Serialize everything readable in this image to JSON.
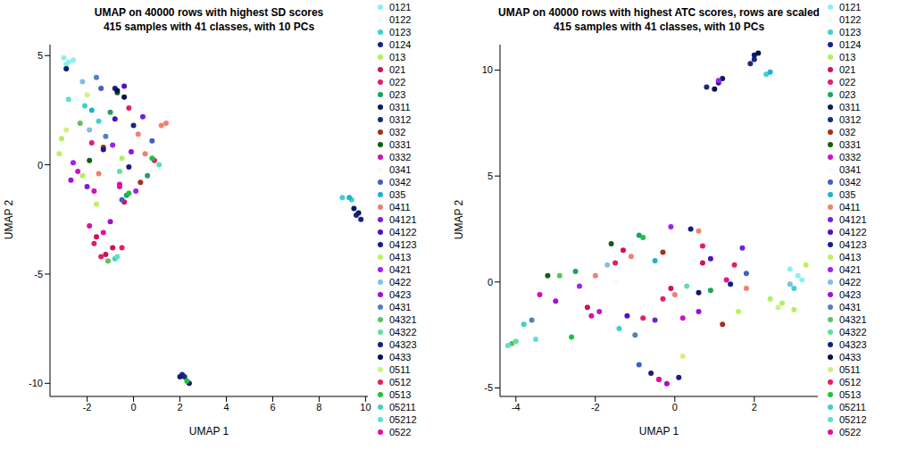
{
  "chart_data": [
    {
      "type": "scatter",
      "title": "UMAP on 40000 rows with highest SD scores",
      "subtitle": "415 samples with 41 classes, with 10 PCs",
      "x_label": "UMAP 1",
      "y_label": "UMAP 2",
      "xlim": [
        -3.6,
        10.1
      ],
      "ylim": [
        -10.6,
        5.5
      ],
      "xticks": [
        -2,
        0,
        2,
        4,
        6,
        8,
        10
      ],
      "yticks": [
        -10,
        -5,
        0,
        5
      ],
      "marker": "circle",
      "series": [
        {
          "name": "0121",
          "color": "#8cf0f0",
          "x": [
            -3.0,
            -2.8,
            -2.6,
            -2.9
          ],
          "y": [
            4.9,
            4.7,
            4.8,
            4.6
          ]
        },
        {
          "name": "0122",
          "color": "#f4fbfb",
          "x": [
            -2.5,
            -1.0
          ],
          "y": [
            3.0,
            1.5
          ]
        },
        {
          "name": "0123",
          "color": "#40d0d0",
          "x": [
            9.0,
            9.4,
            -1.5
          ],
          "y": [
            -1.5,
            -1.6,
            2.0
          ]
        },
        {
          "name": "0124",
          "color": "#1a237e",
          "x": [
            9.6,
            9.8,
            -0.8
          ],
          "y": [
            -2.3,
            -2.5,
            3.5
          ]
        },
        {
          "name": "013",
          "color": "#b0f060",
          "x": [
            -3.1,
            -2.2,
            -0.5
          ],
          "y": [
            1.2,
            -0.5,
            0.3
          ]
        },
        {
          "name": "021",
          "color": "#d0105a",
          "x": [
            -1.6,
            -1.2,
            -0.9,
            -0.4
          ],
          "y": [
            -3.3,
            -4.1,
            -3.8,
            -1.7
          ]
        },
        {
          "name": "022",
          "color": "#e0206a",
          "x": [
            -1.8,
            -0.2,
            0.9
          ],
          "y": [
            1.0,
            2.6,
            0.2
          ]
        },
        {
          "name": "023",
          "color": "#20a060",
          "x": [
            -0.3,
            0.6,
            -1.0
          ],
          "y": [
            -1.4,
            -0.5,
            2.4
          ]
        },
        {
          "name": "0311",
          "color": "#0a1a6a",
          "x": [
            9.5,
            -2.9,
            9.7
          ],
          "y": [
            -2.0,
            4.4,
            -2.2
          ]
        },
        {
          "name": "0312",
          "color": "#1a2a7a",
          "x": [
            2.1,
            2.2,
            0.0
          ],
          "y": [
            -9.6,
            -9.7,
            1.8
          ]
        },
        {
          "name": "032",
          "color": "#a03020",
          "x": [
            -1.3,
            0.3
          ],
          "y": [
            0.8,
            -0.8
          ]
        },
        {
          "name": "0331",
          "color": "#106010",
          "x": [
            -0.7,
            -1.9
          ],
          "y": [
            3.3,
            0.2
          ]
        },
        {
          "name": "0332",
          "color": "#d010c0",
          "x": [
            -2.4,
            -1.7,
            -0.6
          ],
          "y": [
            -0.3,
            -1.2,
            -0.9
          ]
        },
        {
          "name": "0341",
          "color": "#f4fbfb",
          "x": [
            -1.1
          ],
          "y": [
            -0.2
          ]
        },
        {
          "name": "0342",
          "color": "#4060c0",
          "x": [
            -1.4,
            -0.5,
            0.8
          ],
          "y": [
            3.5,
            -1.6,
            1.1
          ]
        },
        {
          "name": "035",
          "color": "#20b0d0",
          "x": [
            9.3,
            -1.8
          ],
          "y": [
            -1.5,
            2.5
          ]
        },
        {
          "name": "0411",
          "color": "#f08070",
          "x": [
            1.2,
            1.4,
            0.5,
            -1.5,
            0.2
          ],
          "y": [
            1.8,
            1.9,
            0.5,
            -0.4,
            1.4
          ]
        },
        {
          "name": "04121",
          "color": "#7020e0",
          "x": [
            -2.0,
            0.4
          ],
          "y": [
            -1.0,
            2.2
          ]
        },
        {
          "name": "04122",
          "color": "#5010c0",
          "x": [
            -0.4,
            -0.8
          ],
          "y": [
            3.6,
            2.1
          ]
        },
        {
          "name": "04123",
          "color": "#1a1a8a",
          "x": [
            -0.2,
            -1.3
          ],
          "y": [
            -0.1,
            0.7
          ]
        },
        {
          "name": "0413",
          "color": "#c0f060",
          "x": [
            -3.2,
            -1.6
          ],
          "y": [
            0.5,
            -1.8
          ]
        },
        {
          "name": "0421",
          "color": "#a020f0",
          "x": [
            -2.6,
            -0.9,
            0.1
          ],
          "y": [
            0.1,
            0.9,
            -1.2
          ]
        },
        {
          "name": "0422",
          "color": "#80c0e0",
          "x": [
            -2.2,
            -1.9
          ],
          "y": [
            3.8,
            1.6
          ]
        },
        {
          "name": "0423",
          "color": "#a010d0",
          "x": [
            -2.7,
            -0.1,
            -1.0
          ],
          "y": [
            -0.7,
            0.6,
            -2.6
          ]
        },
        {
          "name": "0431",
          "color": "#5080c0",
          "x": [
            -1.6,
            -1.2
          ],
          "y": [
            4.0,
            1.3
          ]
        },
        {
          "name": "04321",
          "color": "#60c060",
          "x": [
            -1.1,
            -2.3
          ],
          "y": [
            -4.4,
            1.9
          ]
        },
        {
          "name": "04322",
          "color": "#60e0a0",
          "x": [
            1.1,
            -0.6
          ],
          "y": [
            0.0,
            -0.3
          ]
        },
        {
          "name": "04323",
          "color": "#102080",
          "x": [
            2.4,
            2.0
          ],
          "y": [
            -10.0,
            -9.7
          ]
        },
        {
          "name": "0433",
          "color": "#0a1050",
          "x": [
            -0.7,
            -0.4
          ],
          "y": [
            3.4,
            3.1
          ]
        },
        {
          "name": "0511",
          "color": "#d0f080",
          "x": [
            -2.9,
            -2.0
          ],
          "y": [
            1.6,
            3.2
          ]
        },
        {
          "name": "0512",
          "color": "#e02060",
          "x": [
            -1.7,
            -0.5,
            -1.4
          ],
          "y": [
            -3.6,
            -3.8,
            -4.2
          ]
        },
        {
          "name": "0513",
          "color": "#20c040",
          "x": [
            2.3,
            -0.2,
            0.8
          ],
          "y": [
            -9.9,
            -1.3,
            0.3
          ]
        },
        {
          "name": "05211",
          "color": "#40d0c0",
          "x": [
            -0.8,
            -2.1
          ],
          "y": [
            -4.3,
            2.7
          ]
        },
        {
          "name": "05212",
          "color": "#60e0d0",
          "x": [
            -0.7,
            -2.8
          ],
          "y": [
            -4.2,
            3.0
          ]
        },
        {
          "name": "0522",
          "color": "#e010a0",
          "x": [
            -1.9,
            -0.6,
            -1.3
          ],
          "y": [
            -2.8,
            -1.0,
            -3.1
          ]
        }
      ]
    },
    {
      "type": "scatter",
      "title": "UMAP on 40000 rows with highest ATC scores, rows are scaled",
      "subtitle": "415 samples with 41 classes, with 10 PCs",
      "x_label": "UMAP 1",
      "y_label": "UMAP 2",
      "xlim": [
        -4.4,
        3.6
      ],
      "ylim": [
        -5.4,
        11.2
      ],
      "xticks": [
        -4,
        -2,
        0,
        2
      ],
      "yticks": [
        -5,
        0,
        5,
        10
      ],
      "marker": "circle",
      "series": [
        {
          "name": "0121",
          "color": "#8cf0f0",
          "x": [
            2.9,
            3.1,
            3.2
          ],
          "y": [
            0.6,
            0.3,
            0.1
          ]
        },
        {
          "name": "0122",
          "color": "#f4fbfb",
          "x": [
            -1.5
          ],
          "y": [
            0.0
          ]
        },
        {
          "name": "0123",
          "color": "#40d0d0",
          "x": [
            2.3,
            3.0
          ],
          "y": [
            9.8,
            -0.3
          ]
        },
        {
          "name": "0124",
          "color": "#1a237e",
          "x": [
            2.0,
            1.1
          ],
          "y": [
            10.5,
            9.4
          ]
        },
        {
          "name": "013",
          "color": "#b0f060",
          "x": [
            2.7,
            3.0,
            2.4
          ],
          "y": [
            -1.0,
            -1.3,
            -0.8
          ]
        },
        {
          "name": "021",
          "color": "#d0105a",
          "x": [
            -1.3,
            -0.1,
            0.7,
            -2.2
          ],
          "y": [
            1.5,
            -0.3,
            0.9,
            -1.2
          ]
        },
        {
          "name": "022",
          "color": "#e0206a",
          "x": [
            -0.8,
            1.5,
            -0.4
          ],
          "y": [
            -1.7,
            0.8,
            -4.6
          ]
        },
        {
          "name": "023",
          "color": "#20a060",
          "x": [
            -2.5,
            -0.9,
            0.9
          ],
          "y": [
            0.5,
            2.2,
            -0.4
          ]
        },
        {
          "name": "0311",
          "color": "#0a1a6a",
          "x": [
            1.2,
            2.0,
            0.6
          ],
          "y": [
            9.6,
            10.7,
            -0.5
          ]
        },
        {
          "name": "0312",
          "color": "#1a2a7a",
          "x": [
            0.8,
            1.9
          ],
          "y": [
            9.2,
            10.3
          ]
        },
        {
          "name": "032",
          "color": "#a03020",
          "x": [
            -0.3,
            1.2
          ],
          "y": [
            1.4,
            -2.0
          ]
        },
        {
          "name": "0331",
          "color": "#106010",
          "x": [
            -3.2,
            -1.6
          ],
          "y": [
            0.3,
            1.8
          ]
        },
        {
          "name": "0332",
          "color": "#d010c0",
          "x": [
            -3.4,
            -1.9,
            0.2
          ],
          "y": [
            -0.6,
            -1.4,
            -1.7
          ]
        },
        {
          "name": "0341",
          "color": "#f4fbfb",
          "x": [
            0.5
          ],
          "y": [
            1.0
          ]
        },
        {
          "name": "0342",
          "color": "#4060c0",
          "x": [
            -0.9,
            1.8
          ],
          "y": [
            -3.9,
            0.4
          ]
        },
        {
          "name": "035",
          "color": "#20b0d0",
          "x": [
            2.4,
            -0.5
          ],
          "y": [
            9.9,
            1.0
          ]
        },
        {
          "name": "0411",
          "color": "#f08070",
          "x": [
            -1.1,
            0.6,
            1.8,
            -2.0,
            0.0
          ],
          "y": [
            1.2,
            2.4,
            -0.3,
            0.3,
            -0.6
          ]
        },
        {
          "name": "04121",
          "color": "#7020e0",
          "x": [
            -0.5,
            1.7
          ],
          "y": [
            -1.8,
            1.6
          ]
        },
        {
          "name": "04122",
          "color": "#5010c0",
          "x": [
            -1.2,
            0.9
          ],
          "y": [
            -1.6,
            1.1
          ]
        },
        {
          "name": "04123",
          "color": "#1a1a8a",
          "x": [
            0.1,
            -0.6
          ],
          "y": [
            -4.5,
            -4.3
          ]
        },
        {
          "name": "0413",
          "color": "#c0f060",
          "x": [
            1.6,
            3.3
          ],
          "y": [
            -1.4,
            0.8
          ]
        },
        {
          "name": "0421",
          "color": "#a020f0",
          "x": [
            -0.1,
            -2.4,
            1.1
          ],
          "y": [
            2.6,
            -0.2,
            9.5
          ]
        },
        {
          "name": "0422",
          "color": "#80c0e0",
          "x": [
            2.9,
            -1.7
          ],
          "y": [
            -0.1,
            0.8
          ]
        },
        {
          "name": "0423",
          "color": "#a010d0",
          "x": [
            -0.2,
            -3.0,
            0.6
          ],
          "y": [
            -4.8,
            -0.9,
            -1.4
          ]
        },
        {
          "name": "0431",
          "color": "#5080c0",
          "x": [
            -3.6,
            -1.0
          ],
          "y": [
            -1.8,
            -2.5
          ]
        },
        {
          "name": "04321",
          "color": "#60c060",
          "x": [
            -4.1,
            -2.9
          ],
          "y": [
            -2.9,
            0.3
          ]
        },
        {
          "name": "04322",
          "color": "#60e0a0",
          "x": [
            -4.0,
            0.3
          ],
          "y": [
            -2.8,
            -0.2
          ]
        },
        {
          "name": "04323",
          "color": "#102080",
          "x": [
            1.4,
            0.4
          ],
          "y": [
            -0.1,
            2.5
          ]
        },
        {
          "name": "0433",
          "color": "#0a1050",
          "x": [
            1.0,
            2.1
          ],
          "y": [
            9.1,
            10.8
          ]
        },
        {
          "name": "0511",
          "color": "#d0f080",
          "x": [
            2.6,
            0.2
          ],
          "y": [
            -1.2,
            -3.5
          ]
        },
        {
          "name": "0512",
          "color": "#e02060",
          "x": [
            -1.5,
            -0.3,
            0.7
          ],
          "y": [
            0.9,
            -0.8,
            1.7
          ]
        },
        {
          "name": "0513",
          "color": "#20c040",
          "x": [
            -2.6,
            -0.8
          ],
          "y": [
            -2.6,
            2.1
          ]
        },
        {
          "name": "05211",
          "color": "#40d0c0",
          "x": [
            -3.8,
            -1.4
          ],
          "y": [
            -2.0,
            -2.2
          ]
        },
        {
          "name": "05212",
          "color": "#60e0d0",
          "x": [
            -4.2,
            -3.5
          ],
          "y": [
            -3.0,
            -2.7
          ]
        },
        {
          "name": "0522",
          "color": "#e010a0",
          "x": [
            -2.1,
            -0.4,
            1.3
          ],
          "y": [
            -1.6,
            -4.6,
            0.1
          ]
        }
      ]
    }
  ]
}
